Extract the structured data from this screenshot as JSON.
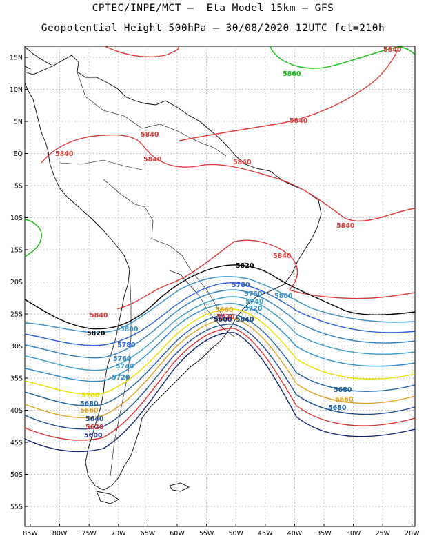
{
  "header": {
    "line1": "CPTEC/INPE/MCT –  Eta Model 15km – GFS",
    "line2": "Geopotential Height 500hPa – 30/08/2020 12UTC fct=210h"
  },
  "map": {
    "lat_ticks": [
      "15N",
      "10N",
      "5N",
      "EQ",
      "5S",
      "10S",
      "15S",
      "20S",
      "25S",
      "30S",
      "35S",
      "40S",
      "45S",
      "50S",
      "55S"
    ],
    "lon_ticks": [
      "85W",
      "80W",
      "75W",
      "70W",
      "65W",
      "60W",
      "55W",
      "50W",
      "45W",
      "40W",
      "35W",
      "30W",
      "25W",
      "20W"
    ],
    "contour_labels": [
      {
        "text": "5860",
        "color": "#10c010"
      },
      {
        "text": "5840",
        "color": "#e03838"
      },
      {
        "text": "5820",
        "color": "#000000"
      },
      {
        "text": "5800",
        "color": "#3a8fc4"
      },
      {
        "text": "5780",
        "color": "#2a5fd8"
      },
      {
        "text": "5760",
        "color": "#2e7fbf"
      },
      {
        "text": "5740",
        "color": "#3a9ec8"
      },
      {
        "text": "5720",
        "color": "#2a8cc8"
      },
      {
        "text": "5700",
        "color": "#e8e000"
      },
      {
        "text": "5680",
        "color": "#1a5fa0"
      },
      {
        "text": "5660",
        "color": "#e0a020"
      },
      {
        "text": "5640",
        "color": "#1a4a90"
      },
      {
        "text": "5620",
        "color": "#e03030"
      },
      {
        "text": "5600",
        "color": "#102070"
      }
    ]
  }
}
